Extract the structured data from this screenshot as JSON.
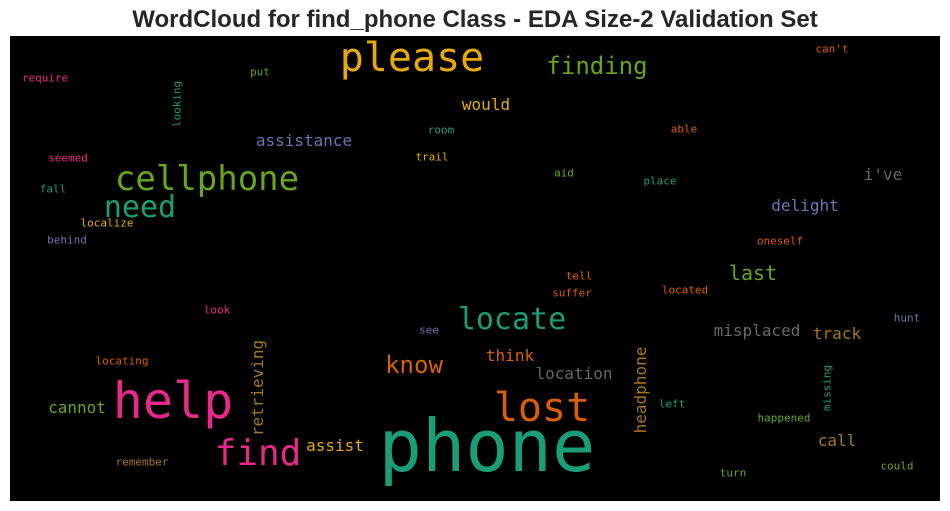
{
  "title": "WordCloud for find_phone Class - EDA Size-2 Validation Set",
  "chart_data": {
    "type": "wordcloud",
    "title": "WordCloud for find_phone Class - EDA Size-2 Validation Set",
    "background": "#000000",
    "words": [
      {
        "text": "phone",
        "color": "#1b9e77"
      },
      {
        "text": "help",
        "color": "#e7298a"
      },
      {
        "text": "please",
        "color": "#e6ab02"
      },
      {
        "text": "lost",
        "color": "#d95f02"
      },
      {
        "text": "find",
        "color": "#e7298a"
      },
      {
        "text": "cellphone",
        "color": "#66a61e"
      },
      {
        "text": "locate",
        "color": "#1b9e77"
      },
      {
        "text": "need",
        "color": "#1b9e77"
      },
      {
        "text": "finding",
        "color": "#66a61e"
      },
      {
        "text": "know",
        "color": "#d95f02"
      },
      {
        "text": "last",
        "color": "#66a61e"
      },
      {
        "text": "assistance",
        "color": "#7570b3"
      },
      {
        "text": "misplaced",
        "color": "#666666"
      },
      {
        "text": "location",
        "color": "#666666"
      },
      {
        "text": "retrieving",
        "color": "#a6761d"
      },
      {
        "text": "headphone",
        "color": "#a6761d"
      },
      {
        "text": "would",
        "color": "#e6ab02"
      },
      {
        "text": "i've",
        "color": "#666666"
      },
      {
        "text": "delight",
        "color": "#7570b3"
      },
      {
        "text": "track",
        "color": "#a6761d"
      },
      {
        "text": "think",
        "color": "#d95f02"
      },
      {
        "text": "assist",
        "color": "#e6ab02"
      },
      {
        "text": "cannot",
        "color": "#66a61e"
      },
      {
        "text": "call",
        "color": "#a6761d"
      },
      {
        "text": "looking",
        "color": "#1b9e77"
      },
      {
        "text": "missing",
        "color": "#1b9e77"
      },
      {
        "text": "require",
        "color": "#e7298a"
      },
      {
        "text": "put",
        "color": "#66a61e"
      },
      {
        "text": "can't",
        "color": "#d95f02"
      },
      {
        "text": "room",
        "color": "#1b9e77"
      },
      {
        "text": "able",
        "color": "#d95f02"
      },
      {
        "text": "seemed",
        "color": "#e7298a"
      },
      {
        "text": "trail",
        "color": "#e6ab02"
      },
      {
        "text": "aid",
        "color": "#66a61e"
      },
      {
        "text": "place",
        "color": "#1b9e77"
      },
      {
        "text": "fall",
        "color": "#1b9e77"
      },
      {
        "text": "localize",
        "color": "#e6ab02"
      },
      {
        "text": "behind",
        "color": "#7570b3"
      },
      {
        "text": "oneself",
        "color": "#d95f02"
      },
      {
        "text": "tell",
        "color": "#d95f02"
      },
      {
        "text": "suffer",
        "color": "#d95f02"
      },
      {
        "text": "located",
        "color": "#d95f02"
      },
      {
        "text": "look",
        "color": "#e7298a"
      },
      {
        "text": "see",
        "color": "#7570b3"
      },
      {
        "text": "hunt",
        "color": "#7570b3"
      },
      {
        "text": "locating",
        "color": "#d95f02"
      },
      {
        "text": "left",
        "color": "#1b9e77"
      },
      {
        "text": "happened",
        "color": "#66a61e"
      },
      {
        "text": "remember",
        "color": "#a6761d"
      },
      {
        "text": "turn",
        "color": "#66a61e"
      },
      {
        "text": "could",
        "color": "#66a61e"
      }
    ]
  }
}
